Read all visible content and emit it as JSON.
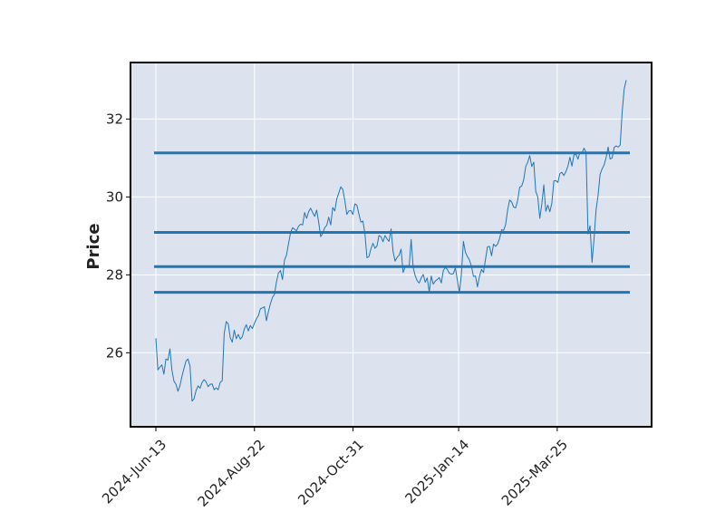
{
  "chart_data": {
    "type": "line",
    "title": "",
    "xlabel": "",
    "ylabel": "Price",
    "ylim": [
      24.1,
      33.45
    ],
    "grid": true,
    "colors": {
      "plot_background": "#dde2ef",
      "grid": "#ffffff",
      "series": "#1f77b4",
      "hlines": "#1f77b4",
      "frame": "#000000"
    },
    "x_tick_labels": [
      "2024-Jun-13",
      "2024-Aug-22",
      "2024-Oct-31",
      "2025-Jan-14",
      "2025-Mar-25"
    ],
    "y_ticks": [
      26,
      28,
      30,
      32
    ],
    "horizontal_levels": [
      31.13,
      29.09,
      28.21,
      27.55
    ],
    "series": [
      {
        "name": "",
        "x_start": "2024-Jun-13",
        "x_end": "2025-May-13",
        "values": [
          26.37,
          25.56,
          25.63,
          25.69,
          25.45,
          25.84,
          25.81,
          26.1,
          25.55,
          25.27,
          25.19,
          25.01,
          25.16,
          25.4,
          25.6,
          25.79,
          25.84,
          25.65,
          24.76,
          24.82,
          25.03,
          25.15,
          25.09,
          25.24,
          25.31,
          25.25,
          25.13,
          25.19,
          25.2,
          25.05,
          25.1,
          25.05,
          25.24,
          25.28,
          26.5,
          26.8,
          26.74,
          26.39,
          26.27,
          26.58,
          26.36,
          26.47,
          26.35,
          26.41,
          26.61,
          26.72,
          26.56,
          26.7,
          26.62,
          26.75,
          26.87,
          26.95,
          27.13,
          27.15,
          27.18,
          26.82,
          27.06,
          27.26,
          27.42,
          27.5,
          27.82,
          28.05,
          28.11,
          27.88,
          28.38,
          28.51,
          28.8,
          29.08,
          29.21,
          29.17,
          29.13,
          29.25,
          29.3,
          29.28,
          29.6,
          29.45,
          29.62,
          29.71,
          29.6,
          29.5,
          29.66,
          29.35,
          28.98,
          29.07,
          29.21,
          29.27,
          29.48,
          29.28,
          29.73,
          29.64,
          29.95,
          30.1,
          30.26,
          30.19,
          29.91,
          29.55,
          29.64,
          29.65,
          29.55,
          29.82,
          29.79,
          29.56,
          29.35,
          29.38,
          29.06,
          28.44,
          28.47,
          28.67,
          28.81,
          28.68,
          28.74,
          29.01,
          28.98,
          28.85,
          29.01,
          28.92,
          28.86,
          29.18,
          28.6,
          28.35,
          28.45,
          28.5,
          28.66,
          28.06,
          28.2,
          28.24,
          28.21,
          28.91,
          28.19,
          27.98,
          27.85,
          27.79,
          27.92,
          28.01,
          27.81,
          27.92,
          27.56,
          27.97,
          27.76,
          27.84,
          27.88,
          27.93,
          27.79,
          28.11,
          28.19,
          28.14,
          28.04,
          28.02,
          28.03,
          28.18,
          27.86,
          27.54,
          28.02,
          28.86,
          28.58,
          28.47,
          28.38,
          28.22,
          27.96,
          27.97,
          27.69,
          27.96,
          28.14,
          28.06,
          28.4,
          28.72,
          28.73,
          28.49,
          28.79,
          28.73,
          28.79,
          28.93,
          29.16,
          29.14,
          29.29,
          29.66,
          29.92,
          29.87,
          29.74,
          29.72,
          29.91,
          30.25,
          30.28,
          30.44,
          30.78,
          30.89,
          31.06,
          30.78,
          30.89,
          30.14,
          30.0,
          29.45,
          29.81,
          30.31,
          29.63,
          29.79,
          29.62,
          29.84,
          30.41,
          30.42,
          30.37,
          30.6,
          30.63,
          30.55,
          30.65,
          30.79,
          31.02,
          30.79,
          31.08,
          31.09,
          30.97,
          31.15,
          31.13,
          31.25,
          31.15,
          29.05,
          29.26,
          28.32,
          28.93,
          29.67,
          30.04,
          30.58,
          30.72,
          30.82,
          31.01,
          31.28,
          30.97,
          31.0,
          31.27,
          31.31,
          31.28,
          31.33,
          32.19,
          32.77,
          33.0
        ]
      }
    ]
  }
}
